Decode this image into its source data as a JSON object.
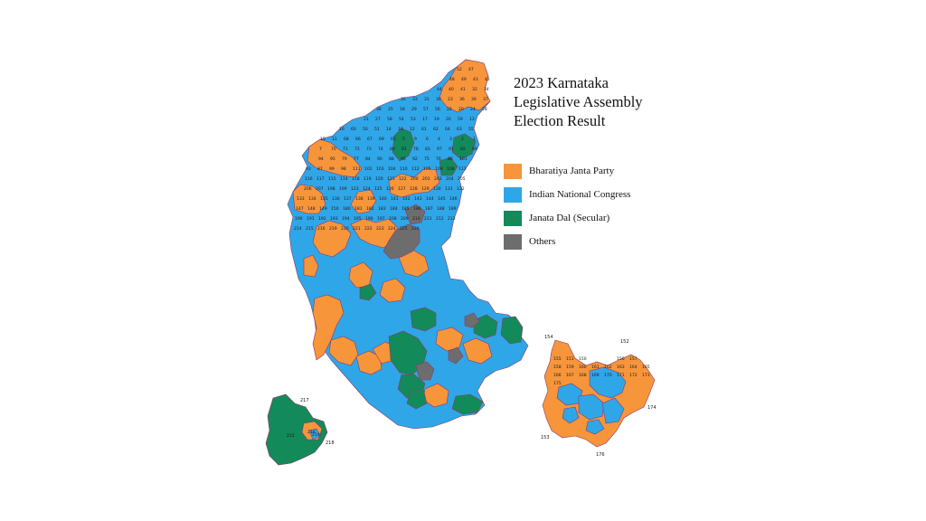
{
  "title": {
    "line1": "2023 Karnataka",
    "line2": "Legislative Assembly",
    "line3": "Election Result"
  },
  "colors": {
    "bjp": "#f7953b",
    "inc": "#2fa6e8",
    "jds": "#138a59",
    "others": "#6d6d6d",
    "border": "#8a3a6a"
  },
  "legend": [
    {
      "label": "Bharatiya Janta Party",
      "color": "#f7953b"
    },
    {
      "label": "Indian National Congress",
      "color": "#2fa6e8"
    },
    {
      "label": "Janata Dal (Secular)",
      "color": "#138a59"
    },
    {
      "label": "Others",
      "color": "#6d6d6d"
    }
  ],
  "main_map_numbers": [
    "52",
    "47",
    "48",
    "49",
    "43",
    "42",
    "44",
    "40",
    "41",
    "32",
    "34",
    "35",
    "33",
    "31",
    "30",
    "23",
    "36",
    "39",
    "37",
    "38",
    "25",
    "18",
    "29",
    "57",
    "56",
    "22",
    "20",
    "24",
    "28",
    "21",
    "27",
    "58",
    "54",
    "53",
    "17",
    "19",
    "26",
    "59",
    "13",
    "16",
    "60",
    "50",
    "51",
    "14",
    "10",
    "12",
    "61",
    "62",
    "64",
    "63",
    "55",
    "15",
    "11",
    "68",
    "66",
    "67",
    "69",
    "65",
    "5",
    "9",
    "6",
    "4",
    "3",
    "2",
    "1",
    "7",
    "70",
    "71",
    "72",
    "73",
    "74",
    "80",
    "81",
    "78",
    "83",
    "97",
    "91",
    "82",
    "89",
    "94",
    "95",
    "79",
    "77",
    "84",
    "90",
    "88",
    "96",
    "92",
    "75",
    "76",
    "86",
    "101",
    "93",
    "87",
    "99",
    "98",
    "111",
    "102",
    "103",
    "104",
    "110",
    "112",
    "105",
    "109",
    "108",
    "113",
    "116",
    "117",
    "115",
    "114",
    "118",
    "119",
    "120",
    "121",
    "122",
    "200",
    "201",
    "203",
    "204",
    "205",
    "206",
    "207",
    "198",
    "199",
    "123",
    "124",
    "125",
    "126",
    "127",
    "128",
    "129",
    "130",
    "131",
    "132",
    "133",
    "134",
    "135",
    "136",
    "137",
    "138",
    "139",
    "140",
    "141",
    "142",
    "143",
    "144",
    "145",
    "146",
    "147",
    "148",
    "149",
    "150",
    "180",
    "181",
    "182",
    "183",
    "184",
    "185",
    "186",
    "187",
    "188",
    "189",
    "190",
    "191",
    "192",
    "193",
    "194",
    "195",
    "196",
    "197",
    "208",
    "209",
    "210",
    "211",
    "212",
    "213",
    "214",
    "215",
    "216",
    "219",
    "220",
    "221",
    "222",
    "223",
    "224",
    "225",
    "226"
  ],
  "bengaluru_inset": {
    "numbers": [
      "154",
      "152",
      "155",
      "151",
      "150",
      "153",
      "156",
      "157",
      "158",
      "159",
      "160",
      "161",
      "162",
      "163",
      "164",
      "165",
      "166",
      "167",
      "168",
      "169",
      "170",
      "171",
      "172",
      "173",
      "174",
      "175",
      "176"
    ],
    "outer_labels": [
      "154",
      "152",
      "174",
      "153",
      "176"
    ]
  },
  "mysuru_inset": {
    "outer_labels": [
      "217",
      "218"
    ],
    "numbers": [
      "215",
      "216",
      "219"
    ]
  }
}
